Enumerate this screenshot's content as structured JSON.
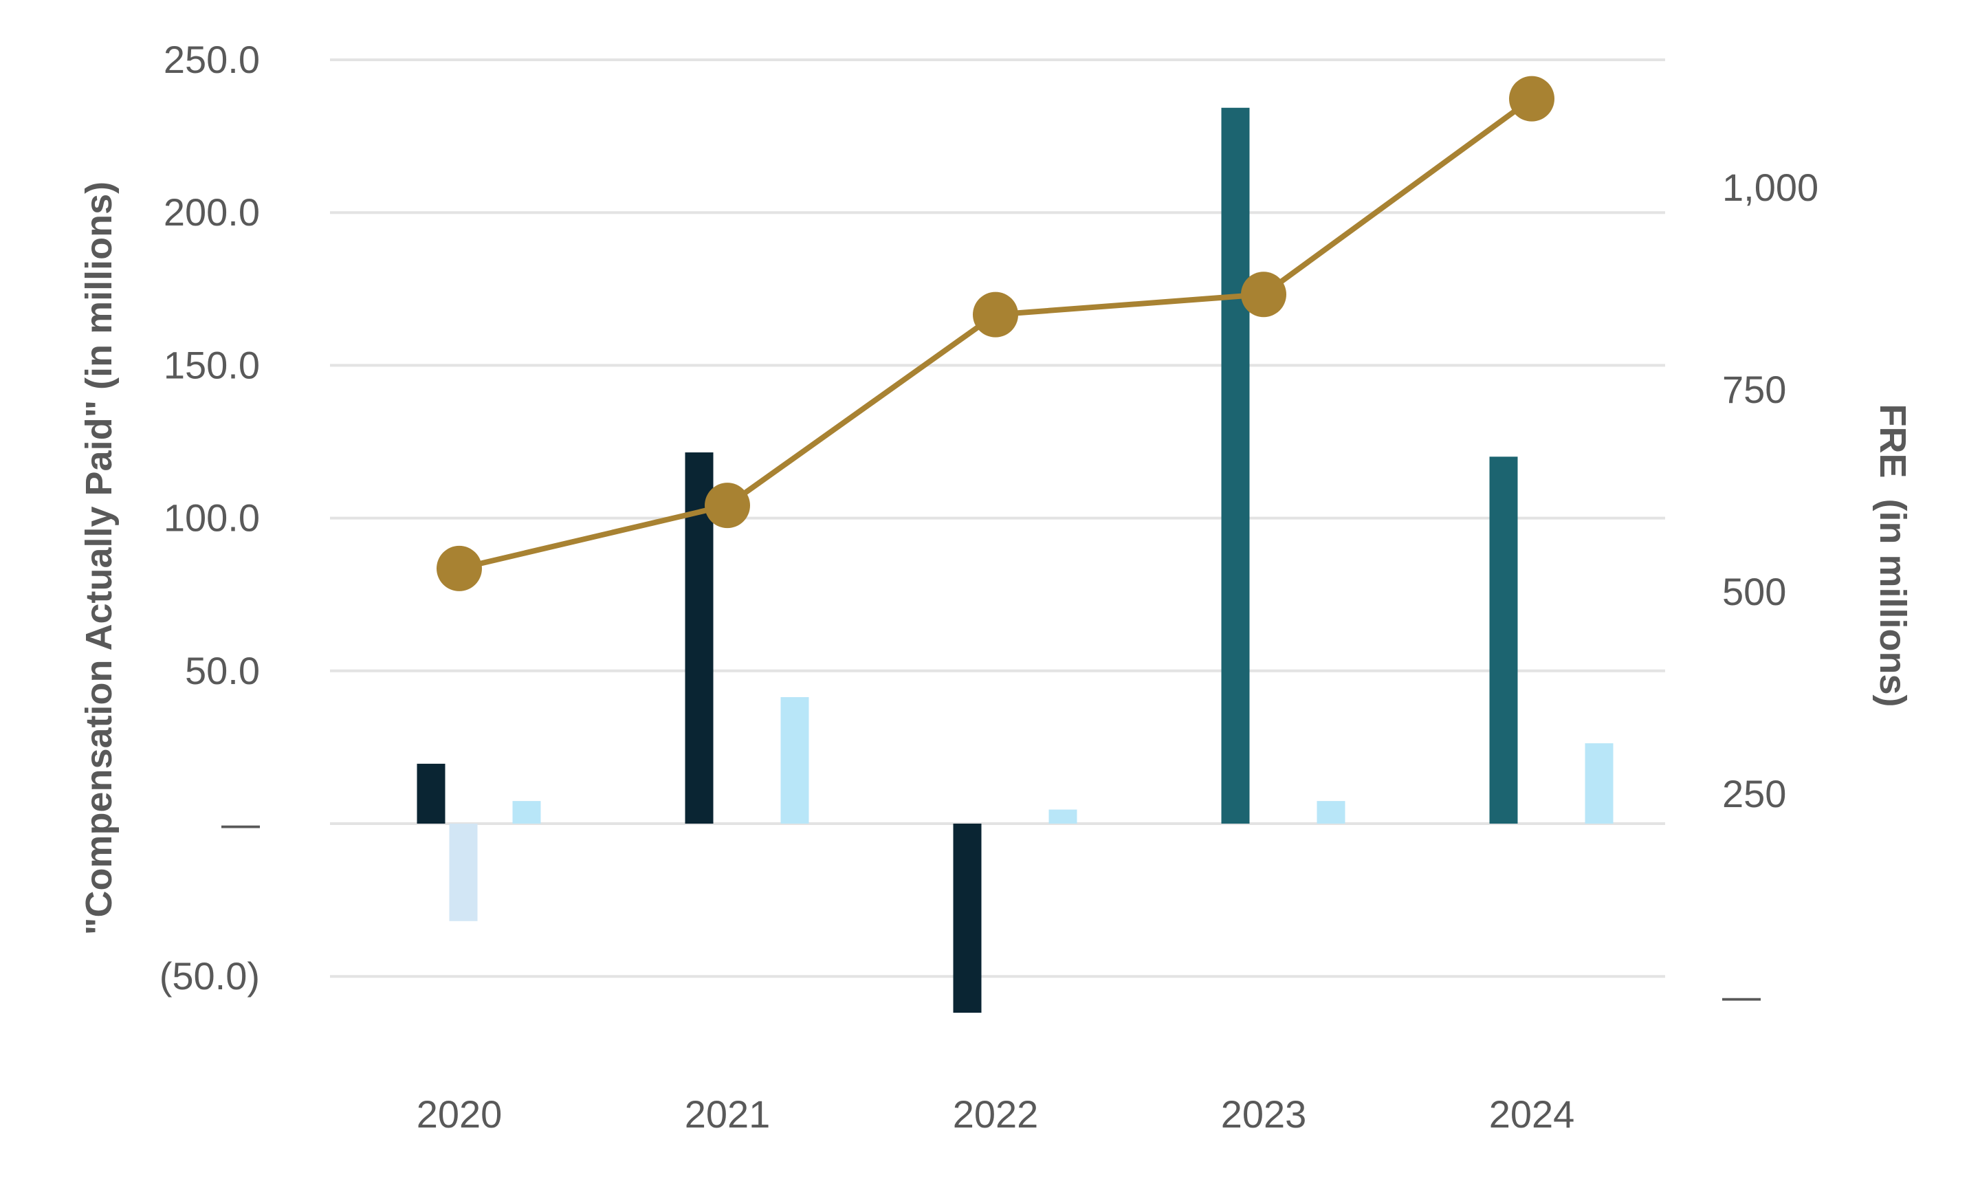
{
  "chart_data": {
    "type": "bar+line",
    "categories": [
      "2020",
      "2021",
      "2022",
      "2023",
      "2024"
    ],
    "left_axis": {
      "title": "\"Compensation Actually Paid\" (in millions)",
      "range": [
        -50,
        250
      ],
      "ticks": [
        -50,
        0,
        50,
        100,
        150,
        200,
        250
      ],
      "tick_labels": [
        "(50.0)",
        "—",
        "50.0",
        "100.0",
        "150.0",
        "200.0",
        "250.0"
      ]
    },
    "right_axis": {
      "title": "FRE  (in millions)",
      "range": [
        0,
        1150
      ],
      "ticks": [
        0,
        250,
        500,
        750,
        1000
      ],
      "tick_labels": [
        "—",
        "250",
        "500",
        "750",
        "1,000"
      ]
    },
    "grid": true,
    "legend": "none",
    "bar_series": [
      {
        "values": [
          19.6,
          121.5,
          -61.9,
          234.3,
          120.1
        ],
        "colors": [
          "#0a2533",
          "#0a2533",
          "#0a2533",
          "#1c6470",
          "#1c6470"
        ],
        "slot": 0
      },
      {
        "values": [
          -31.9,
          null,
          null,
          null,
          null
        ],
        "colors": [
          "#d2e6f5",
          "#d2e6f5",
          "#d2e6f5",
          "#d2e6f5",
          "#d2e6f5"
        ],
        "slot": 1
      },
      {
        "values": [
          7.4,
          41.4,
          4.6,
          7.4,
          26.3
        ],
        "colors": [
          "#b8e6f8",
          "#b8e6f8",
          "#b8e6f8",
          "#b8e6f8",
          "#b8e6f8"
        ],
        "slot": 3
      }
    ],
    "line_series": {
      "axis": "right",
      "values": [
        529,
        607,
        843,
        868,
        1110
      ],
      "color": "#a88232"
    },
    "gridline_color": "#e3e3e3"
  }
}
